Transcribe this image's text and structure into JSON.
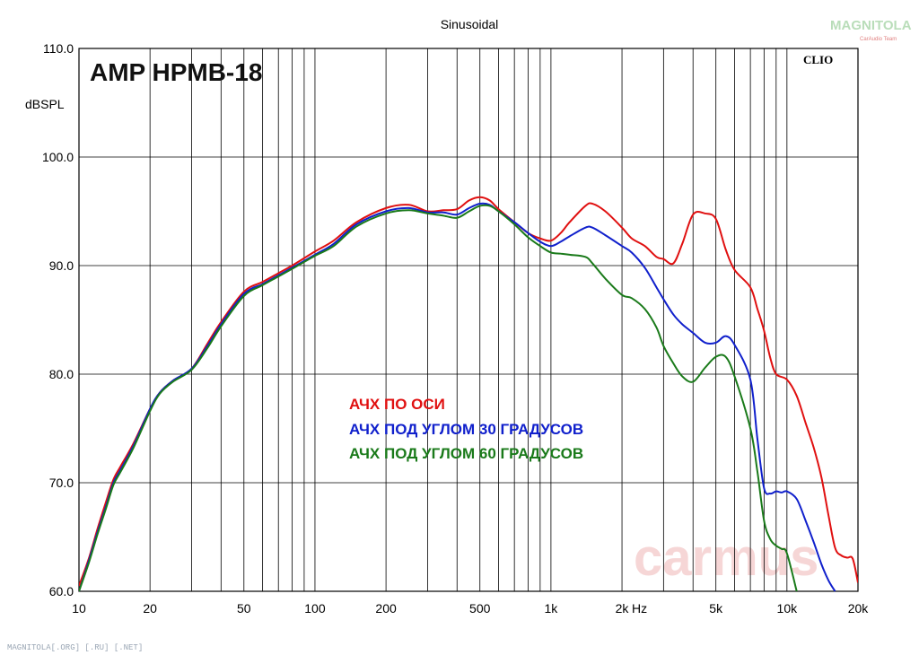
{
  "chart_data": {
    "type": "line",
    "title": "Sinusoidal",
    "model_label": "AMP HPMB-18",
    "ylabel": "dBSPL",
    "xunit_label": "Hz",
    "x_scale": "log",
    "xlim": [
      10,
      20000
    ],
    "ylim": [
      60,
      110
    ],
    "grid": true,
    "x_ticks": [
      {
        "value": 10,
        "label": "10"
      },
      {
        "value": 20,
        "label": "20"
      },
      {
        "value": 50,
        "label": "50"
      },
      {
        "value": 100,
        "label": "100"
      },
      {
        "value": 200,
        "label": "200"
      },
      {
        "value": 500,
        "label": "500"
      },
      {
        "value": 1000,
        "label": "1k"
      },
      {
        "value": 2000,
        "label": "2k"
      },
      {
        "value": 5000,
        "label": "5k"
      },
      {
        "value": 10000,
        "label": "10k"
      },
      {
        "value": 20000,
        "label": "20k"
      }
    ],
    "y_ticks": [
      {
        "value": 60,
        "label": "60.0"
      },
      {
        "value": 70,
        "label": "70.0"
      },
      {
        "value": 80,
        "label": "80.0"
      },
      {
        "value": 90,
        "label": "90.0"
      },
      {
        "value": 100,
        "label": "100.0"
      },
      {
        "value": 110,
        "label": "110.0"
      }
    ],
    "legend_placement": "center",
    "series": [
      {
        "name": "АЧХ ПО ОСИ",
        "color": "#e01010",
        "x": [
          10,
          11,
          12,
          13,
          14,
          15,
          17,
          20,
          22,
          25,
          30,
          35,
          40,
          50,
          60,
          70,
          80,
          100,
          120,
          150,
          200,
          250,
          300,
          350,
          400,
          450,
          500,
          550,
          600,
          700,
          800,
          900,
          1000,
          1100,
          1200,
          1400,
          1500,
          1700,
          2000,
          2200,
          2500,
          2800,
          3000,
          3300,
          3600,
          4000,
          4500,
          5000,
          5500,
          6000,
          7000,
          7500,
          8000,
          8500,
          9000,
          10000,
          11000,
          12000,
          13000,
          14000,
          15000,
          16000,
          17000,
          18000,
          19000,
          20000
        ],
        "values": [
          60.5,
          63,
          65.8,
          68.2,
          70.3,
          71.5,
          73.6,
          76.8,
          78.3,
          79.4,
          80.5,
          82.8,
          84.8,
          87.6,
          88.5,
          89.3,
          90.0,
          91.3,
          92.3,
          94.0,
          95.3,
          95.6,
          95.0,
          95.1,
          95.2,
          96.0,
          96.3,
          96.0,
          95.2,
          94.0,
          93.0,
          92.5,
          92.3,
          93.0,
          94.0,
          95.5,
          95.7,
          95.0,
          93.5,
          92.5,
          91.8,
          90.8,
          90.6,
          90.2,
          92.0,
          94.7,
          94.8,
          94.3,
          91.5,
          89.6,
          88.0,
          86.0,
          84.0,
          81.5,
          80.0,
          79.5,
          78.0,
          75.5,
          73.2,
          70.5,
          67.0,
          64.0,
          63.3,
          63.1,
          63.0,
          60.8
        ]
      },
      {
        "name": "АЧХ ПОД УГЛОМ 30 ГРАДУСОВ",
        "color": "#1020cc",
        "x": [
          10,
          11,
          12,
          13,
          14,
          15,
          17,
          20,
          22,
          25,
          30,
          35,
          40,
          50,
          60,
          70,
          80,
          100,
          120,
          150,
          200,
          250,
          300,
          350,
          400,
          450,
          500,
          550,
          600,
          700,
          800,
          900,
          1000,
          1100,
          1200,
          1400,
          1500,
          1700,
          2000,
          2200,
          2500,
          2800,
          3000,
          3300,
          3600,
          4000,
          4500,
          5000,
          5500,
          6000,
          7000,
          7500,
          8000,
          8500,
          9000,
          9500,
          10000,
          11000,
          12000,
          13000,
          14000,
          15000,
          16000
        ],
        "values": [
          60,
          62.8,
          65.5,
          67.8,
          70.0,
          71.2,
          73.4,
          76.8,
          78.3,
          79.4,
          80.5,
          82.6,
          84.6,
          87.4,
          88.3,
          89.1,
          89.8,
          91.0,
          92.0,
          93.8,
          95.0,
          95.3,
          94.9,
          94.9,
          94.7,
          95.3,
          95.7,
          95.6,
          95.0,
          94.0,
          93.0,
          92.2,
          91.8,
          92.2,
          92.7,
          93.5,
          93.5,
          92.8,
          91.8,
          91.2,
          89.8,
          88.0,
          86.9,
          85.5,
          84.6,
          83.8,
          82.9,
          82.9,
          83.5,
          82.7,
          79.5,
          74.0,
          69.5,
          69.0,
          69.2,
          69.1,
          69.2,
          68.5,
          66.5,
          64.5,
          62.5,
          61.0,
          60.0
        ]
      },
      {
        "name": "АЧХ ПОД УГЛОМ 60 ГРАДУСОВ",
        "color": "#1a7a1a",
        "x": [
          10,
          11,
          12,
          13,
          14,
          15,
          17,
          20,
          22,
          25,
          30,
          35,
          40,
          50,
          60,
          70,
          80,
          100,
          120,
          150,
          200,
          250,
          300,
          350,
          400,
          450,
          500,
          550,
          600,
          700,
          800,
          900,
          1000,
          1100,
          1200,
          1400,
          1500,
          1700,
          2000,
          2200,
          2500,
          2800,
          3000,
          3300,
          3600,
          4000,
          4500,
          5000,
          5500,
          6000,
          7000,
          7500,
          8000,
          8500,
          9000,
          9500,
          10000,
          11000
        ],
        "values": [
          60,
          62.6,
          65.3,
          67.6,
          69.8,
          71.0,
          73.2,
          76.6,
          78.2,
          79.3,
          80.4,
          82.4,
          84.4,
          87.2,
          88.2,
          89.0,
          89.7,
          90.9,
          91.8,
          93.6,
          94.8,
          95.1,
          94.8,
          94.6,
          94.4,
          95.0,
          95.5,
          95.5,
          95.0,
          93.8,
          92.6,
          91.8,
          91.2,
          91.1,
          91.0,
          90.8,
          90.2,
          88.8,
          87.3,
          87.0,
          86.0,
          84.3,
          82.6,
          81.0,
          79.8,
          79.3,
          80.6,
          81.6,
          81.6,
          79.8,
          75.0,
          71.0,
          66.5,
          64.8,
          64.2,
          63.9,
          63.5,
          60.0
        ]
      }
    ]
  },
  "watermarks": {
    "clio": "CLIO",
    "carmus": "carmus",
    "magnitola_top": "MAGNITOLA",
    "magnitola_sub": "CarAudio Team",
    "footer": "MAGNITOLA[.ORG] [.RU] [.NET]"
  }
}
